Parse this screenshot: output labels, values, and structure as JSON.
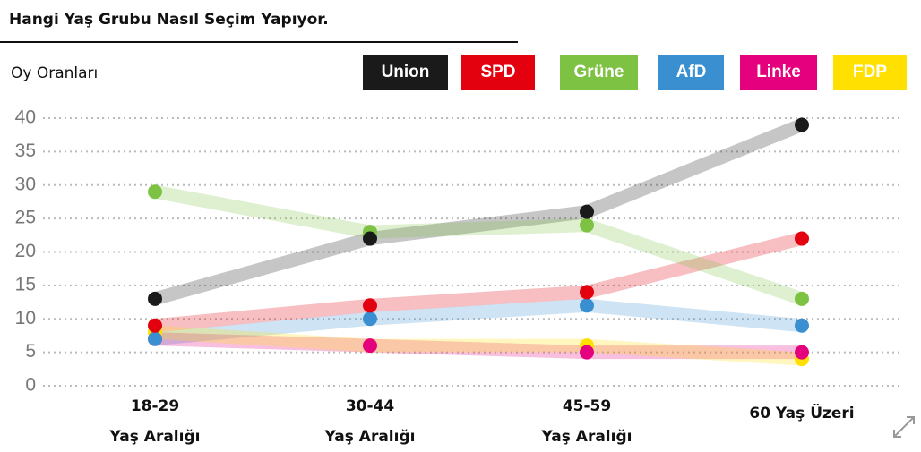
{
  "chart_data": {
    "type": "line",
    "title": "Hangi Yaş Grubu Nasıl Seçim Yapıyor.",
    "subtitle": "Oy Oranları",
    "categories": [
      [
        "18-29",
        "Yaş Aralığı"
      ],
      [
        "30-44",
        "Yaş Aralığı"
      ],
      [
        "45-59",
        "Yaş Aralığı"
      ],
      [
        "60 Yaş Üzeri"
      ]
    ],
    "series": [
      {
        "name": "Union",
        "color": "#1a1a1a",
        "values": [
          13,
          22,
          26,
          39
        ]
      },
      {
        "name": "SPD",
        "color": "#e3000f",
        "values": [
          9,
          12,
          14,
          22
        ]
      },
      {
        "name": "Grüne",
        "color": "#7dc242",
        "values": [
          29,
          23,
          24,
          13
        ]
      },
      {
        "name": "AfD",
        "color": "#3a8fd0",
        "values": [
          7,
          10,
          12,
          9
        ]
      },
      {
        "name": "Linke",
        "color": "#e5007e",
        "values": [
          7,
          6,
          5,
          5
        ]
      },
      {
        "name": "FDP",
        "color": "#ffe000",
        "values": [
          8,
          6,
          6,
          4
        ]
      }
    ],
    "ylim": [
      0,
      40
    ],
    "yticks": [
      0,
      5,
      10,
      15,
      20,
      25,
      30,
      35,
      40
    ],
    "grid": true
  }
}
